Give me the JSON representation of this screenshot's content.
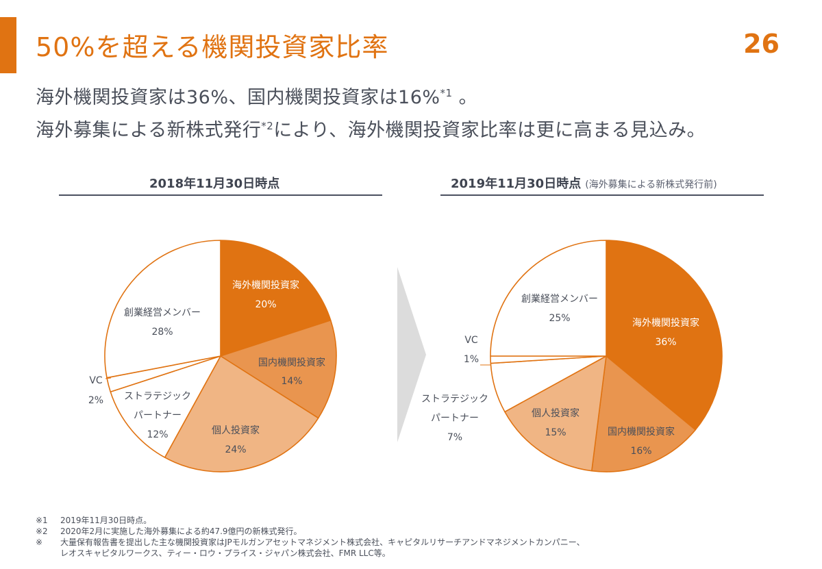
{
  "header": {
    "title": "50%を超える機関投資家比率",
    "page_number": "26",
    "lead_line1_a": "海外機関投資家は36%、国内機関投資家は16%",
    "lead_line1_sup": "*1",
    "lead_line1_b": " 。",
    "lead_line2_a": "海外募集による新株式発行",
    "lead_line2_sup": "*2",
    "lead_line2_b": "により、海外機関投資家比率は更に高まる見込み。"
  },
  "columns": {
    "left_heading": "2018年11月30日時点",
    "right_heading": "2019年11月30日時点",
    "right_note": "(海外募集による新株式発行前)"
  },
  "chart_data": [
    {
      "type": "pie",
      "title": "2018年11月30日時点",
      "slices": [
        {
          "name": "海外機関投資家",
          "value": 20,
          "label": "20%",
          "color": "#e07312"
        },
        {
          "name": "国内機関投資家",
          "value": 14,
          "label": "14%",
          "color": "#e9954f"
        },
        {
          "name": "個人投資家",
          "value": 24,
          "label": "24%",
          "color": "#f0b584"
        },
        {
          "name": "ストラテジックパートナー",
          "value": 12,
          "label": "12%",
          "color": "#ffffff"
        },
        {
          "name": "VC",
          "value": 2,
          "label": "2%",
          "color": "#ffffff"
        },
        {
          "name": "創業経営メンバー",
          "value": 28,
          "label": "28%",
          "color": "#ffffff"
        }
      ]
    },
    {
      "type": "pie",
      "title": "2019年11月30日時点",
      "slices": [
        {
          "name": "海外機関投資家",
          "value": 36,
          "label": "36%",
          "color": "#e07312"
        },
        {
          "name": "国内機関投資家",
          "value": 16,
          "label": "16%",
          "color": "#e9954f"
        },
        {
          "name": "個人投資家",
          "value": 15,
          "label": "15%",
          "color": "#f0b584"
        },
        {
          "name": "ストラテジックパートナー",
          "value": 7,
          "label": "7%",
          "color": "#ffffff"
        },
        {
          "name": "VC",
          "value": 1,
          "label": "1%",
          "color": "#ffffff"
        },
        {
          "name": "創業経営メンバー",
          "value": 25,
          "label": "25%",
          "color": "#ffffff"
        }
      ]
    }
  ],
  "pie_labels": {
    "left": {
      "foreign": [
        "海外機関投資家",
        "20%"
      ],
      "domestic": [
        "国内機関投資家",
        "14%"
      ],
      "individual": [
        "個人投資家",
        "24%"
      ],
      "strategic": [
        "ストラテジック",
        "パートナー",
        "12%"
      ],
      "vc": [
        "VC",
        "2%"
      ],
      "founders": [
        "創業経営メンバー",
        "28%"
      ]
    },
    "right": {
      "foreign": [
        "海外機関投資家",
        "36%"
      ],
      "domestic": [
        "国内機関投資家",
        "16%"
      ],
      "individual": [
        "個人投資家",
        "15%"
      ],
      "strategic": [
        "ストラテジック",
        "パートナー",
        "7%"
      ],
      "vc": [
        "VC",
        "1%"
      ],
      "founders": [
        "創業経営メンバー",
        "25%"
      ]
    }
  },
  "footnotes": {
    "fn1_mark": "※1",
    "fn1_text": "2019年11月30日時点。",
    "fn2_mark": "※2",
    "fn2_text": "2020年2月に実施した海外募集による約47.9億円の新株式発行。",
    "fn3_mark": "※",
    "fn3_text": "大量保有報告書を提出した主な機関投資家はJPモルガンアセットマネジメント株式会社、キャピタルリサーチアンドマネジメントカンパニー、",
    "fn3_cont": "レオスキャピタルワークス、ティー・ロウ・プライス・ジャパン株式会社、FMR LLC等。"
  },
  "colors": {
    "accent": "#e07312",
    "text": "#4a4f5a",
    "rule": "#4a5060",
    "arrow": "#dcdcdc"
  }
}
